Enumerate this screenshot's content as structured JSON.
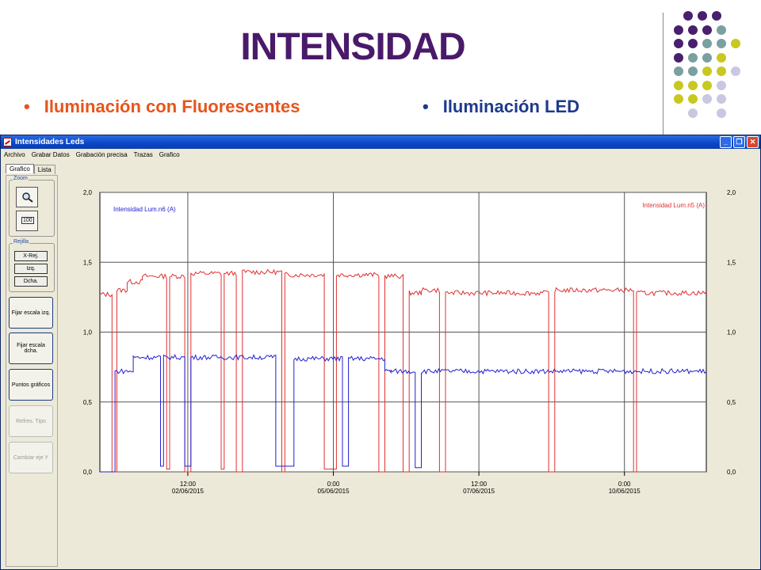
{
  "slide": {
    "title": "INTENSIDAD",
    "bullet_left": "Iluminación con Fluorescentes",
    "bullet_right": "Iluminación LED",
    "bullet_char": "•"
  },
  "window": {
    "title": "Intensidades Leds",
    "buttons": {
      "minimize": "_",
      "restore": "❐",
      "close": "✕"
    },
    "menu": [
      "Archivo",
      "Grabar Datos",
      "Grabación precisa",
      "Trazas",
      "Grafico"
    ],
    "tabs": [
      "Grafico",
      "Lista"
    ]
  },
  "sidebar": {
    "zoom_label": "Zoom",
    "zoom_100": "100",
    "rejilla_label": "Rejilla",
    "grid_buttons": [
      "X-Rej.",
      "Izq.",
      "Dcha."
    ],
    "buttons": [
      {
        "label": "Fijar escala izq.",
        "enabled": true
      },
      {
        "label": "Fijar escala dcha.",
        "enabled": true
      },
      {
        "label": "Puntos gráficos",
        "enabled": true
      },
      {
        "label": "Refres. Tipo",
        "enabled": false
      },
      {
        "label": "Cambiar eje Y",
        "enabled": false
      }
    ]
  },
  "chart_data": {
    "type": "line",
    "y_left_ticks": [
      "2,0",
      "1,5",
      "1,0",
      "0,5",
      "0,0"
    ],
    "y_right_ticks": [
      "2,0",
      "1,5",
      "1,0",
      "0,5",
      "0,0"
    ],
    "ylim": [
      0,
      2
    ],
    "x_tick_labels": [
      {
        "time": "12:00",
        "date": "02/06/2015"
      },
      {
        "time": "0:00",
        "date": "05/06/2015"
      },
      {
        "time": "12:00",
        "date": "07/06/2015"
      },
      {
        "time": "0:00",
        "date": "10/06/2015"
      }
    ],
    "grid": true,
    "series": [
      {
        "name": "Intensidad Lum.n5 (A)",
        "color": "#e03030",
        "axis": "right",
        "segments": [
          {
            "from": 0.0,
            "to": 0.02,
            "level": 1.27
          },
          {
            "from": 0.02,
            "to": 0.028,
            "level": 0.0
          },
          {
            "from": 0.028,
            "to": 0.045,
            "level": 1.3
          },
          {
            "from": 0.045,
            "to": 0.07,
            "level": 1.36
          },
          {
            "from": 0.07,
            "to": 0.11,
            "level": 1.4
          },
          {
            "from": 0.11,
            "to": 0.115,
            "level": 0.02
          },
          {
            "from": 0.115,
            "to": 0.14,
            "level": 1.4
          },
          {
            "from": 0.14,
            "to": 0.15,
            "level": 0.0
          },
          {
            "from": 0.15,
            "to": 0.2,
            "level": 1.42
          },
          {
            "from": 0.2,
            "to": 0.205,
            "level": 0.02
          },
          {
            "from": 0.205,
            "to": 0.225,
            "level": 1.42
          },
          {
            "from": 0.225,
            "to": 0.235,
            "level": 0.0
          },
          {
            "from": 0.235,
            "to": 0.3,
            "level": 1.43
          },
          {
            "from": 0.3,
            "to": 0.305,
            "level": 0.0
          },
          {
            "from": 0.305,
            "to": 0.37,
            "level": 1.41
          },
          {
            "from": 0.37,
            "to": 0.39,
            "level": 0.02
          },
          {
            "from": 0.39,
            "to": 0.46,
            "level": 1.41
          },
          {
            "from": 0.46,
            "to": 0.47,
            "level": 0.0
          },
          {
            "from": 0.47,
            "to": 0.5,
            "level": 1.4
          },
          {
            "from": 0.5,
            "to": 0.51,
            "level": 0.0
          },
          {
            "from": 0.51,
            "to": 0.53,
            "level": 1.28
          },
          {
            "from": 0.53,
            "to": 0.56,
            "level": 1.3
          },
          {
            "from": 0.56,
            "to": 0.57,
            "level": 0.0
          },
          {
            "from": 0.57,
            "to": 0.74,
            "level": 1.28
          },
          {
            "from": 0.74,
            "to": 0.75,
            "level": 0.0
          },
          {
            "from": 0.75,
            "to": 0.88,
            "level": 1.3
          },
          {
            "from": 0.88,
            "to": 0.885,
            "level": 0.0
          },
          {
            "from": 0.885,
            "to": 1.0,
            "level": 1.28
          }
        ]
      },
      {
        "name": "Intensidad Lum.n6 (A)",
        "color": "#2020d0",
        "axis": "left",
        "segments": [
          {
            "from": 0.0,
            "to": 0.025,
            "level": 0.0
          },
          {
            "from": 0.025,
            "to": 0.055,
            "level": 0.72
          },
          {
            "from": 0.055,
            "to": 0.1,
            "level": 0.82
          },
          {
            "from": 0.1,
            "to": 0.105,
            "level": 0.04
          },
          {
            "from": 0.105,
            "to": 0.14,
            "level": 0.82
          },
          {
            "from": 0.14,
            "to": 0.15,
            "level": 0.04
          },
          {
            "from": 0.15,
            "to": 0.29,
            "level": 0.82
          },
          {
            "from": 0.29,
            "to": 0.32,
            "level": 0.04
          },
          {
            "from": 0.32,
            "to": 0.4,
            "level": 0.81
          },
          {
            "from": 0.4,
            "to": 0.41,
            "level": 0.04
          },
          {
            "from": 0.41,
            "to": 0.47,
            "level": 0.81
          },
          {
            "from": 0.47,
            "to": 0.48,
            "level": 0.72
          },
          {
            "from": 0.48,
            "to": 0.52,
            "level": 0.72
          },
          {
            "from": 0.52,
            "to": 0.53,
            "level": 0.03
          },
          {
            "from": 0.53,
            "to": 1.0,
            "level": 0.72
          }
        ]
      }
    ]
  }
}
